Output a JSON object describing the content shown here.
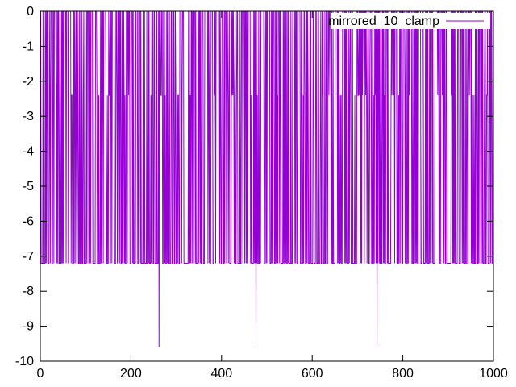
{
  "chart_data": {
    "type": "line",
    "title": "",
    "xlabel": "",
    "ylabel": "",
    "xlim": [
      0,
      1000
    ],
    "ylim": [
      -10,
      0
    ],
    "grid": false,
    "legend_position": "top-right",
    "x_ticks": [
      "0",
      "200",
      "400",
      "600",
      "800",
      "1000"
    ],
    "y_ticks": [
      "0",
      "-1",
      "-2",
      "-3",
      "-4",
      "-5",
      "-6",
      "-7",
      "-8",
      "-9",
      "-10"
    ],
    "series": [
      {
        "name": "mirrored_10_clamp",
        "color": "#9400d3",
        "baseline_values": [
          0,
          -2.4,
          -7.2
        ],
        "outliers": [
          {
            "x": 262,
            "y": -9.6
          },
          {
            "x": 476,
            "y": -9.6
          },
          {
            "x": 743,
            "y": -9.6
          }
        ],
        "n_points": 1000
      }
    ]
  }
}
